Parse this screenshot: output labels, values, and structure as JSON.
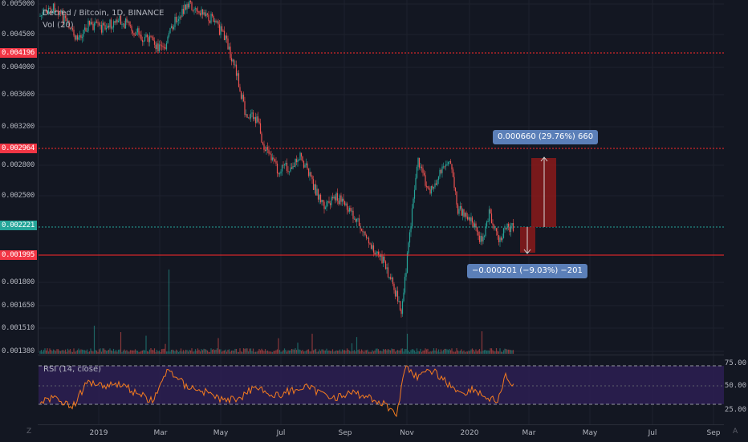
{
  "legend": {
    "title": "Decred / Bitcoin, 1D, BINANCE",
    "volume": "Vol (20)",
    "rsi": "RSI (14, close)"
  },
  "price_axis": [
    "0.005000",
    "0.004500",
    "0.004000",
    "0.003600",
    "0.003200",
    "0.002800",
    "0.002500",
    "0.001800",
    "0.001650",
    "0.001510",
    "0.001380"
  ],
  "price_badges": {
    "resistance_high": "0.004196",
    "resistance_mid": "0.002964",
    "current": "0.002221",
    "support": "0.001995"
  },
  "rsi_axis": [
    "75.00",
    "50.00",
    "25.00"
  ],
  "time_axis": [
    "2019",
    "Mar",
    "May",
    "Jul",
    "Sep",
    "Nov",
    "2020",
    "Mar",
    "May",
    "Jul",
    "Sep"
  ],
  "measure_up": "0.000660 (29.76%) 660",
  "measure_down": "−0.000201 (−9.03%) −201",
  "corner_left": "Z",
  "corner_right": "A",
  "colors": {
    "background": "#131722",
    "up": "#26a69a",
    "down": "#ef5350",
    "level_line": "#ff2a2a",
    "current": "#26a69a",
    "rsi_line": "#f57c1f",
    "rsi_band": "#2d1f52",
    "tooltip": "#5b7fb8"
  },
  "chart_data": {
    "type": "candlestick",
    "title": "Decred / Bitcoin, 1D, BINANCE",
    "series": [
      {
        "name": "Decred / Bitcoin",
        "x": [
          "2018-12",
          "2019-01",
          "2019-02",
          "2019-03",
          "2019-04",
          "2019-05",
          "2019-06",
          "2019-07",
          "2019-08",
          "2019-09",
          "2019-10",
          "2019-11",
          "2019-12",
          "2020-01",
          "2020-02"
        ],
        "values": [
          0.00465,
          0.0047,
          0.0045,
          0.00445,
          0.0049,
          0.0041,
          0.0031,
          0.00275,
          0.0024,
          0.00215,
          0.0016,
          0.0027,
          0.00285,
          0.00205,
          0.00222
        ]
      },
      {
        "name": "RSI (14, close)",
        "values": [
          40,
          55,
          48,
          60,
          52,
          45,
          50,
          48,
          42,
          40,
          28,
          60,
          50,
          42,
          55
        ]
      }
    ],
    "levels": [
      0.004196,
      0.002964,
      0.002221,
      0.001995
    ],
    "ylim": [
      0.00138,
      0.005
    ],
    "rsi_bands": [
      25,
      50,
      75
    ]
  }
}
